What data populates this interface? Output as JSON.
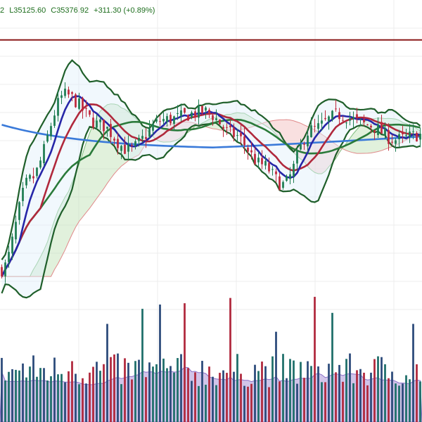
{
  "legend": {
    "cut_prefix": "2",
    "low": "L35125.60",
    "close": "C35376.92",
    "change": "+311.30 (+0.89%)"
  },
  "colors": {
    "up_candle": "#1e7d52",
    "down_candle": "#c0293c",
    "sma_fast": "#2626a8",
    "sma_mid": "#b0283c",
    "sma_slow": "#2a7a3a",
    "sma_long": "#3a7ad9",
    "bollinger": "#1f5f2a",
    "cloud_green": "#c9e6c0",
    "cloud_red": "#f4c7c7",
    "horizontal_line": "#8b1a1a",
    "volume_up": "#1e6f6a",
    "volume_down": "#b0283c",
    "volume_blue": "#2b4a7a",
    "volume_ma": "#b39ddb"
  },
  "chart_data": {
    "type": "line",
    "grid": true,
    "horizontal_line_level": 36000,
    "bars": 120,
    "ylim": [
      33300,
      36400
    ]
  }
}
